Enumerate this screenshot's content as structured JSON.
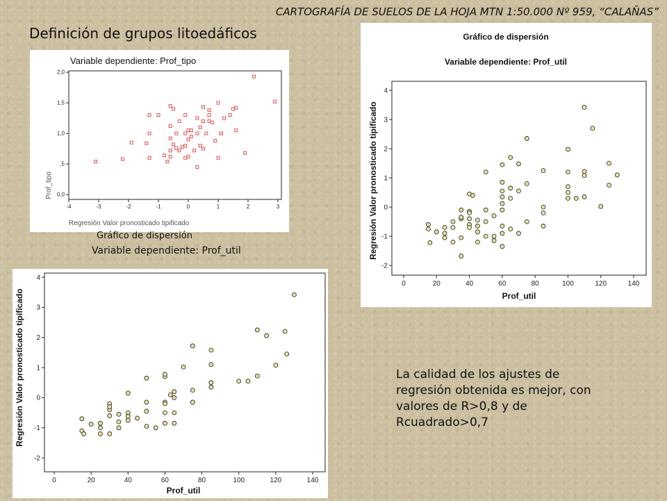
{
  "header": {
    "title": "CARTOGRAFÍA DE SUELOS DE LA HOJA MTN 1:50.000 Nº 959, “CALAÑAS”",
    "section": "Definición de grupos litoedáficos"
  },
  "note": "La calidad de los ajustes de regresión obtenida es mejor, con valores de R>0,8 y de Rcuadrado>0,7",
  "colors": {
    "background": "#cbbf9f",
    "red_marker": "#e05050",
    "marker_fill": "#e8e0a0"
  },
  "chart_data": [
    {
      "type": "scatter",
      "title": "Variable dependiente: Prof_tipo",
      "xlabel": "Regresión Valor pronosticado tipificado",
      "ylabel": "Prof_tipo",
      "xlim": [
        -4,
        3
      ],
      "ylim": [
        0,
        2
      ],
      "xticks": [
        "-4",
        "-3",
        "-2",
        "-1",
        "0",
        "1",
        "2",
        "3"
      ],
      "yticks": [
        "0,0",
        ",5",
        "1,0",
        "1,5",
        "2,0"
      ],
      "points": [
        [
          -3.1,
          0.54
        ],
        [
          -2.2,
          0.58
        ],
        [
          -1.9,
          0.85
        ],
        [
          -1.4,
          0.84
        ],
        [
          -1.3,
          1.0
        ],
        [
          -1.3,
          0.6
        ],
        [
          -1.3,
          1.3
        ],
        [
          -1.0,
          1.3
        ],
        [
          -0.8,
          0.64
        ],
        [
          -0.7,
          0.54
        ],
        [
          -0.6,
          0.62
        ],
        [
          -0.6,
          0.72
        ],
        [
          -0.6,
          0.92
        ],
        [
          -0.6,
          1.12
        ],
        [
          -0.6,
          1.45
        ],
        [
          -0.5,
          1.4
        ],
        [
          -0.5,
          0.82
        ],
        [
          -0.4,
          0.76
        ],
        [
          -0.4,
          1.0
        ],
        [
          -0.3,
          1.2
        ],
        [
          -0.3,
          0.72
        ],
        [
          -0.2,
          0.78
        ],
        [
          -0.1,
          0.8
        ],
        [
          -0.1,
          0.6
        ],
        [
          -0.1,
          1.0
        ],
        [
          -0.1,
          1.3
        ],
        [
          0.0,
          0.62
        ],
        [
          0.0,
          0.9
        ],
        [
          0.0,
          1.05
        ],
        [
          0.1,
          1.05
        ],
        [
          0.1,
          0.95
        ],
        [
          0.2,
          0.72
        ],
        [
          0.3,
          1.0
        ],
        [
          0.4,
          0.8
        ],
        [
          0.4,
          1.1
        ],
        [
          0.5,
          0.75
        ],
        [
          0.5,
          1.2
        ],
        [
          0.5,
          1.43
        ],
        [
          0.6,
          1.0
        ],
        [
          0.7,
          1.2
        ],
        [
          0.7,
          1.3
        ],
        [
          0.8,
          1.18
        ],
        [
          0.9,
          0.88
        ],
        [
          1.0,
          0.6
        ],
        [
          1.0,
          1.5
        ],
        [
          1.1,
          1.0
        ],
        [
          1.2,
          1.25
        ],
        [
          1.4,
          1.3
        ],
        [
          1.5,
          1.4
        ],
        [
          1.6,
          1.42
        ],
        [
          1.6,
          1.05
        ],
        [
          1.9,
          0.68
        ],
        [
          2.2,
          1.93
        ],
        [
          2.9,
          1.52
        ],
        [
          0.3,
          1.25
        ],
        [
          0.3,
          0.45
        ],
        [
          1.1,
          1.0
        ],
        [
          0.7,
          1.38
        ]
      ]
    },
    {
      "type": "scatter",
      "title": "Gráfico de dispersión",
      "subtitle": "Variable dependiente: Prof_util",
      "xlabel": "Prof_util",
      "ylabel": "Regresión Valor pronosticado tipificado",
      "xlim": [
        0,
        140
      ],
      "ylim": [
        -2,
        4
      ],
      "xticks": [
        "0",
        "20",
        "40",
        "60",
        "80",
        "100",
        "120",
        "140"
      ],
      "yticks": [
        "-2",
        "-1",
        "0",
        "1",
        "2",
        "3",
        "4"
      ],
      "points": [
        [
          15,
          -0.6
        ],
        [
          15,
          -0.75
        ],
        [
          16,
          -1.22
        ],
        [
          20,
          -0.85
        ],
        [
          25,
          -0.9
        ],
        [
          25,
          -0.7
        ],
        [
          25,
          -1.05
        ],
        [
          30,
          -0.7
        ],
        [
          30,
          -0.5
        ],
        [
          30,
          -1.2
        ],
        [
          35,
          -1.68
        ],
        [
          35,
          -1.05
        ],
        [
          35,
          -0.4
        ],
        [
          35,
          -0.35
        ],
        [
          35,
          -0.1
        ],
        [
          40,
          -0.15
        ],
        [
          40,
          -0.4
        ],
        [
          40,
          -0.6
        ],
        [
          40,
          -0.7
        ],
        [
          40,
          -0.2
        ],
        [
          40,
          0.45
        ],
        [
          42,
          0.4
        ],
        [
          45,
          -1.2
        ],
        [
          45,
          -0.65
        ],
        [
          45,
          -0.45
        ],
        [
          45,
          -0.85
        ],
        [
          50,
          -1.0
        ],
        [
          50,
          -0.5
        ],
        [
          50,
          -0.1
        ],
        [
          50,
          1.2
        ],
        [
          55,
          -1.15
        ],
        [
          55,
          -1.0
        ],
        [
          55,
          -0.3
        ],
        [
          60,
          -0.9
        ],
        [
          60,
          -0.65
        ],
        [
          60,
          -1.35
        ],
        [
          60,
          0.12
        ],
        [
          60,
          0.35
        ],
        [
          60,
          0.55
        ],
        [
          60,
          0.85
        ],
        [
          60,
          1.45
        ],
        [
          60,
          -0.1
        ],
        [
          65,
          -0.75
        ],
        [
          65,
          0.3
        ],
        [
          65,
          0.65
        ],
        [
          65,
          1.7
        ],
        [
          70,
          -0.9
        ],
        [
          70,
          0.55
        ],
        [
          70,
          1.48
        ],
        [
          75,
          2.35
        ],
        [
          75,
          0.8
        ],
        [
          75,
          -0.5
        ],
        [
          85,
          -0.65
        ],
        [
          85,
          -0.2
        ],
        [
          85,
          0.0
        ],
        [
          85,
          1.25
        ],
        [
          100,
          1.98
        ],
        [
          100,
          1.2
        ],
        [
          100,
          0.7
        ],
        [
          100,
          0.5
        ],
        [
          100,
          0.3
        ],
        [
          105,
          0.3
        ],
        [
          110,
          3.42
        ],
        [
          110,
          0.35
        ],
        [
          110,
          1.08
        ],
        [
          110,
          1.22
        ],
        [
          115,
          2.7
        ],
        [
          120,
          0.02
        ],
        [
          125,
          1.5
        ],
        [
          125,
          0.75
        ],
        [
          130,
          1.1
        ]
      ]
    },
    {
      "type": "scatter",
      "title": "Gráfico de dispersión",
      "subtitle": "Variable dependiente: Prof_util",
      "xlabel": "Prof_util",
      "ylabel": "Regresión Valor pronosticado tipificado",
      "xlim": [
        0,
        140
      ],
      "ylim": [
        -2,
        4
      ],
      "xticks": [
        "0",
        "20",
        "40",
        "60",
        "80",
        "100",
        "120",
        "140"
      ],
      "yticks": [
        "-2",
        "-1",
        "0",
        "1",
        "2",
        "3",
        "4"
      ],
      "points": [
        [
          15,
          -0.7
        ],
        [
          15,
          -1.1
        ],
        [
          16,
          -1.2
        ],
        [
          20,
          -0.88
        ],
        [
          25,
          -0.85
        ],
        [
          25,
          -1.0
        ],
        [
          25,
          -1.2
        ],
        [
          30,
          -1.2
        ],
        [
          30,
          -0.2
        ],
        [
          30,
          -0.4
        ],
        [
          30,
          -0.3
        ],
        [
          30,
          -0.6
        ],
        [
          35,
          -0.8
        ],
        [
          35,
          -0.55
        ],
        [
          35,
          -1.0
        ],
        [
          40,
          0.15
        ],
        [
          40,
          -0.5
        ],
        [
          40,
          -0.62
        ],
        [
          40,
          -0.75
        ],
        [
          45,
          -0.68
        ],
        [
          50,
          -0.15
        ],
        [
          50,
          -0.45
        ],
        [
          50,
          -0.95
        ],
        [
          50,
          0.65
        ],
        [
          55,
          -1.0
        ],
        [
          60,
          -0.15
        ],
        [
          60,
          -0.2
        ],
        [
          60,
          -0.5
        ],
        [
          60,
          -0.85
        ],
        [
          60,
          0.7
        ],
        [
          60,
          0.78
        ],
        [
          63,
          0.1
        ],
        [
          65,
          -0.5
        ],
        [
          65,
          -0.85
        ],
        [
          65,
          0.2
        ],
        [
          65,
          0.0
        ],
        [
          70,
          1.02
        ],
        [
          75,
          1.72
        ],
        [
          75,
          -0.15
        ],
        [
          75,
          0.25
        ],
        [
          85,
          1.58
        ],
        [
          85,
          1.1
        ],
        [
          85,
          0.5
        ],
        [
          85,
          0.35
        ],
        [
          100,
          0.55
        ],
        [
          105,
          0.55
        ],
        [
          110,
          0.72
        ],
        [
          110,
          2.25
        ],
        [
          115,
          2.06
        ],
        [
          120,
          1.08
        ],
        [
          125,
          2.2
        ],
        [
          126,
          1.45
        ],
        [
          130,
          3.42
        ]
      ]
    }
  ]
}
